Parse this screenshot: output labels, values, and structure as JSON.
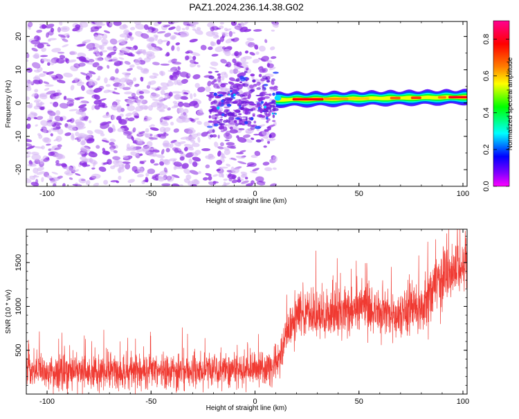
{
  "figure": {
    "title": "PAZ1.2024.236.14.38.G02"
  },
  "colors": {
    "snr_line": "#f03a32",
    "noise_dots": "#8a2be2",
    "background": "#ffffff",
    "frame": "#000000"
  },
  "chart_data": [
    {
      "type": "heatmap",
      "name": "spectrogram",
      "xlabel": "Height of straight line (km)",
      "ylabel": "Frequency (Hz)",
      "xlim": [
        -110,
        102
      ],
      "ylim": [
        -25,
        24.5
      ],
      "xticks": [
        -100,
        -50,
        0,
        50,
        100
      ],
      "yticks": [
        -20,
        -10,
        0,
        10,
        20
      ],
      "colorbar": {
        "label": "Normalized spectral amplitude",
        "range": [
          0.0,
          0.9
        ],
        "ticks": [
          0.0,
          0.2,
          0.4,
          0.6,
          0.8
        ],
        "colormap": "rainbow (magenta-blue-cyan-green-yellow-red-magenta)"
      },
      "features": {
        "noise_region_x": [
          -110,
          10
        ],
        "noise_amplitude": 0.05,
        "transition_region_x": [
          -22,
          10
        ],
        "transition_amplitude": 0.15,
        "carrier_start_x": 10,
        "carrier_end_x": 102,
        "carrier_frequency_start": 1.0,
        "carrier_frequency_end": 1.8,
        "carrier_peak_amplitude": 0.9
      }
    },
    {
      "type": "line",
      "name": "snr",
      "xlabel": "Height of straight line (km)",
      "ylabel": "SNR (10 * v/v)",
      "xlim": [
        -110,
        102
      ],
      "ylim": [
        0,
        1880
      ],
      "xticks": [
        -100,
        -50,
        0,
        50,
        100
      ],
      "yticks": [
        500,
        1000,
        1500
      ],
      "series": [
        {
          "knots_x": [
            -110,
            -60,
            -30,
            -10,
            5,
            10,
            13,
            15,
            20,
            30,
            40,
            50,
            60,
            70,
            80,
            90,
            100,
            102
          ],
          "knots_y": [
            250,
            250,
            260,
            270,
            280,
            330,
            470,
            700,
            900,
            930,
            940,
            960,
            960,
            900,
            1000,
            1380,
            1450,
            1450
          ],
          "noise_std": [
            120,
            120,
            120,
            120,
            120,
            120,
            130,
            150,
            160,
            160,
            170,
            170,
            170,
            170,
            180,
            200,
            200,
            200
          ]
        }
      ]
    }
  ]
}
